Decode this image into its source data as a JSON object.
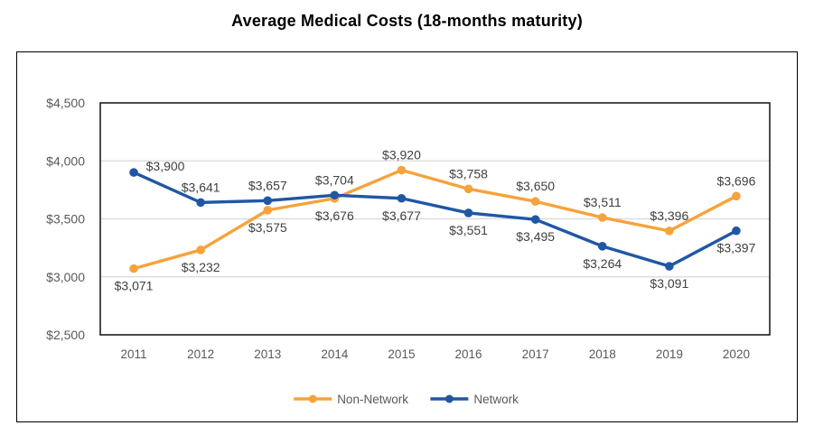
{
  "chart_data": {
    "type": "line",
    "title": "Average Medical Costs (18-months maturity)",
    "categories": [
      "2011",
      "2012",
      "2013",
      "2014",
      "2015",
      "2016",
      "2017",
      "2018",
      "2019",
      "2020"
    ],
    "series": [
      {
        "name": "Non-Network",
        "color": "#F5A33C",
        "values": [
          3071,
          3232,
          3575,
          3676,
          3920,
          3758,
          3650,
          3511,
          3396,
          3696
        ],
        "label_positions": [
          "below",
          "below",
          "below",
          "below",
          "above",
          "above",
          "above",
          "above",
          "above",
          "above"
        ]
      },
      {
        "name": "Network",
        "color": "#2057A5",
        "values": [
          3900,
          3641,
          3657,
          3704,
          3677,
          3551,
          3495,
          3264,
          3091,
          3397
        ],
        "label_positions": [
          "right",
          "above",
          "above",
          "above",
          "below",
          "below",
          "below",
          "below",
          "below",
          "below"
        ]
      }
    ],
    "ylim": [
      2500,
      4500
    ],
    "y_ticks": [
      4500,
      4000,
      3500,
      3000,
      2500
    ],
    "value_prefix": "$",
    "grid": true,
    "gridline_color": "#D9D9D9",
    "plot_border_color": "#000000",
    "axis_text_color": "#595959",
    "data_label_color": "#404040",
    "legend_text_color": "#595959",
    "legend_position": "bottom",
    "data_labels": true
  }
}
